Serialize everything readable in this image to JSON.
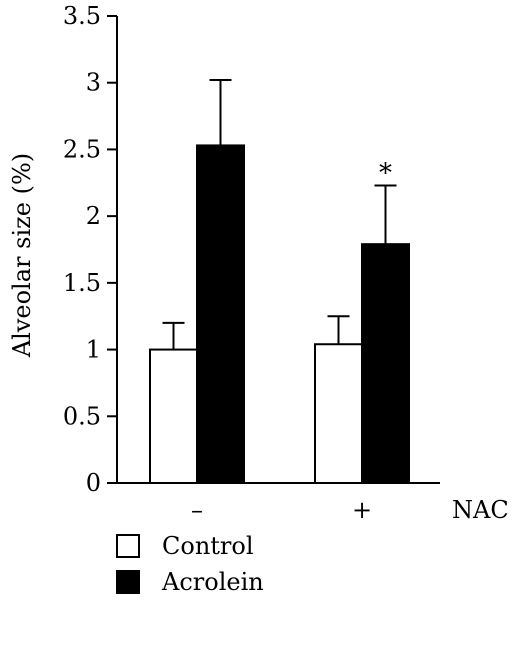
{
  "chart_data": {
    "type": "bar",
    "title": "",
    "xlabel": "NAC",
    "ylabel": "Alveolar size (%)",
    "ylim": [
      0,
      3.5
    ],
    "yticks": [
      "0",
      "0.5",
      "1",
      "1.5",
      "2",
      "2.5",
      "3",
      "3.5"
    ],
    "categories": [
      "–",
      "+"
    ],
    "series": [
      {
        "name": "Control",
        "color": "#ffffff",
        "values": [
          1.0,
          1.04
        ],
        "errors": [
          0.2,
          0.21
        ]
      },
      {
        "name": "Acrolein",
        "color": "#000000",
        "values": [
          2.53,
          1.79
        ],
        "errors": [
          0.49,
          0.44
        ]
      }
    ],
    "annotations": [
      {
        "category": "+",
        "series": "Acrolein",
        "text": "*"
      }
    ],
    "legend": "bottom-left",
    "grid": false
  }
}
